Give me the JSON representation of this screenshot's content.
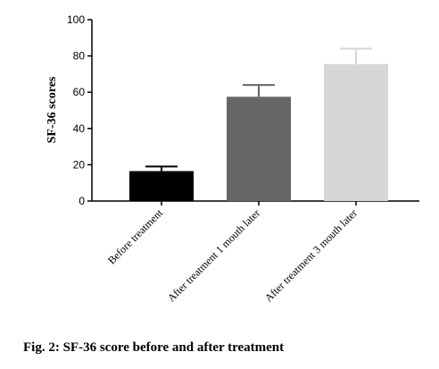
{
  "caption": "Fig. 2: SF-36 score before and after treatment",
  "chart_data": {
    "type": "bar",
    "categories": [
      "Before treatment",
      "After treatment 1 mouth later",
      "After treatment 3 mouth later"
    ],
    "values": [
      16.5,
      57.5,
      75.5
    ],
    "errors": [
      2.5,
      6.5,
      8.5
    ],
    "colors": [
      "#000000",
      "#666666",
      "#d6d6d6"
    ],
    "error_colors": [
      "#000000",
      "#666666",
      "#d6d6d6"
    ],
    "ylabel": "SF-36 scores",
    "xlabel": "",
    "ylim": [
      0,
      100
    ],
    "yticks": [
      0,
      20,
      40,
      60,
      80,
      100
    ],
    "grid": false,
    "legend": "none"
  }
}
